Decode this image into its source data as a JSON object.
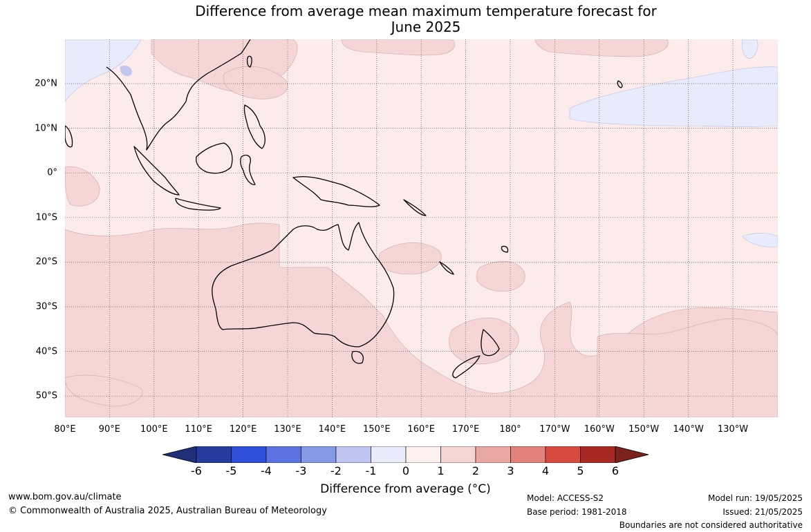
{
  "title": {
    "line1": "Difference from average mean maximum temperature forecast for",
    "line2": "June 2025"
  },
  "map": {
    "longitude_labels": [
      "80°E",
      "90°E",
      "100°E",
      "110°E",
      "120°E",
      "130°E",
      "140°E",
      "150°E",
      "160°E",
      "170°E",
      "180°",
      "170°W",
      "160°W",
      "150°W",
      "140°W",
      "130°W"
    ],
    "latitude_labels": [
      "20°N",
      "10°N",
      "0°",
      "10°S",
      "20°S",
      "30°S",
      "40°S",
      "50°S"
    ],
    "colors": {
      "ocean_0_to_1": "#fbebea",
      "anomaly_1_to_2": "#f5d6d5",
      "anomaly_minus1_to_0": "#e8ebfb",
      "anomaly_minus2_to_minus1": "#c2c8f2",
      "coastline": "#000000",
      "gridline": "#555555"
    }
  },
  "colorbar": {
    "ticks": [
      "-6",
      "-5",
      "-4",
      "-3",
      "-2",
      "-1",
      "0",
      "1",
      "2",
      "3",
      "4",
      "5",
      "6"
    ],
    "colors": [
      "#263d9f",
      "#2f4fd8",
      "#5a73e0",
      "#8699e6",
      "#c0c6f1",
      "#e9ebfb",
      "#fdf1ef",
      "#f5d6d5",
      "#eaa8a2",
      "#e2827a",
      "#d94a3f",
      "#a82822",
      "#7d211c"
    ],
    "title": "Difference from average (°C)"
  },
  "footer": {
    "website": "www.bom.gov.au/climate",
    "copyright": "© Commonwealth of Australia 2025, Australian Bureau of Meteorology",
    "model": "Model: ACCESS-S2",
    "base_period": "Base period: 1981-2018",
    "model_run": "Model run: 19/05/2025",
    "issued": "Issued: 21/05/2025",
    "disclaimer": "Boundaries are not considered authoritative"
  }
}
